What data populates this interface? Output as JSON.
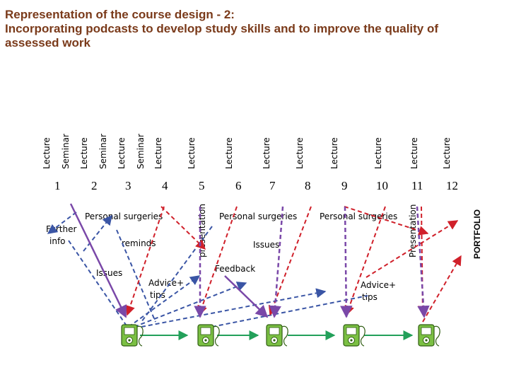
{
  "title": {
    "line1": "Representation of the course design - 2:",
    "line2": "Incorporating podcasts to develop study skills and to improve the quality of",
    "line3": "assessed work"
  },
  "session_headers": {
    "lecture": "Lecture",
    "seminar": "Seminar",
    "presentation": "presentation",
    "presentation_cap": "Presentation",
    "portfolio": "PORTFOLIO"
  },
  "weeks": [
    "1",
    "2",
    "3",
    "4",
    "5",
    "6",
    "7",
    "8",
    "9",
    "10",
    "11",
    "12"
  ],
  "annotations": {
    "further_line1": "Further",
    "further_line2": "info",
    "personal_surgeries_1": "Personal surgeries",
    "personal_surgeries_2": "Personal surgeries",
    "personal_surgeries_3": "Personal surgeries",
    "reminds": "reminds",
    "issues_1": "Issues",
    "issues_2": "Issues",
    "feedback": "Feedback",
    "advice_1_line1": "Advice+",
    "advice_1_line2": "tips",
    "advice_2_line1": "Advice+",
    "advice_2_line2": "tips"
  },
  "colors": {
    "title": "#7a3a1a",
    "green_timeline": "#23a05a",
    "blue_dashed": "#3a55a5",
    "red_dashed": "#d0202a",
    "purple_arrow": "#7a48a8",
    "podcast_device": "#7bc043"
  },
  "podcast_devices": [
    "podcast-device-icon",
    "podcast-device-icon",
    "podcast-device-icon",
    "podcast-device-icon",
    "podcast-device-icon"
  ]
}
